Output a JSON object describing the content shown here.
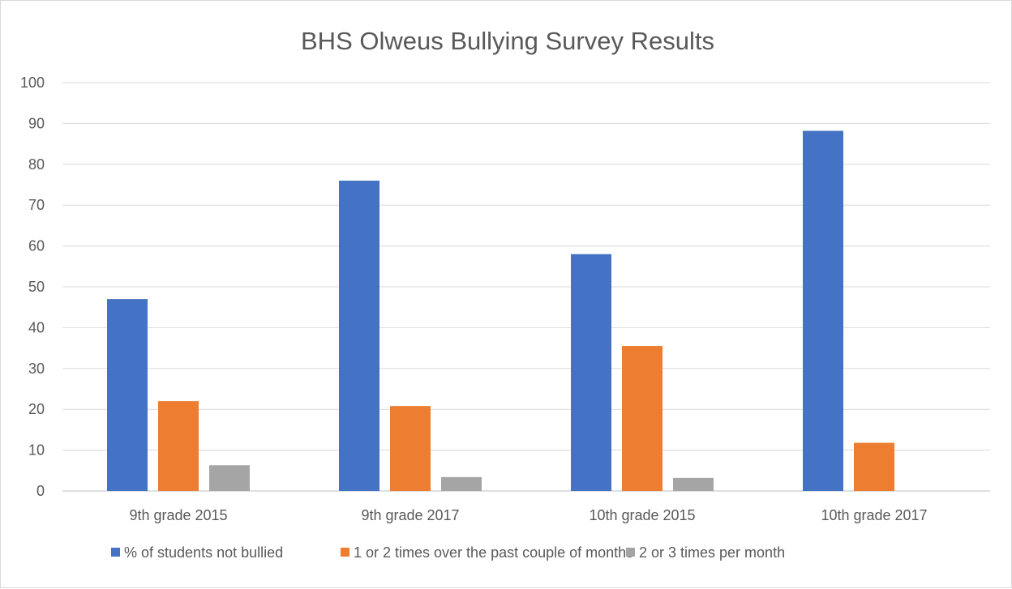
{
  "chart_data": {
    "type": "bar",
    "title": "BHS Olweus Bullying Survey Results",
    "xlabel": "",
    "ylabel": "",
    "categories": [
      "9th grade 2015",
      "9th grade 2017",
      "10th grade 2015",
      "10th grade 2017"
    ],
    "series": [
      {
        "name": "% of students not bullied",
        "color": "#4472c4",
        "values": [
          47,
          76,
          58,
          88.2
        ]
      },
      {
        "name": "1 or 2 times over the past couple of months",
        "color": "#ed7d31",
        "values": [
          22,
          20.8,
          35.5,
          11.8
        ]
      },
      {
        "name": "2 or 3 times per month",
        "color": "#a5a5a5",
        "values": [
          6.3,
          3.4,
          3.2,
          0
        ]
      }
    ],
    "ylim": [
      0,
      100
    ],
    "yticks": [
      0,
      10,
      20,
      30,
      40,
      50,
      60,
      70,
      80,
      90,
      100
    ],
    "grid": true,
    "legend_position": "bottom"
  }
}
